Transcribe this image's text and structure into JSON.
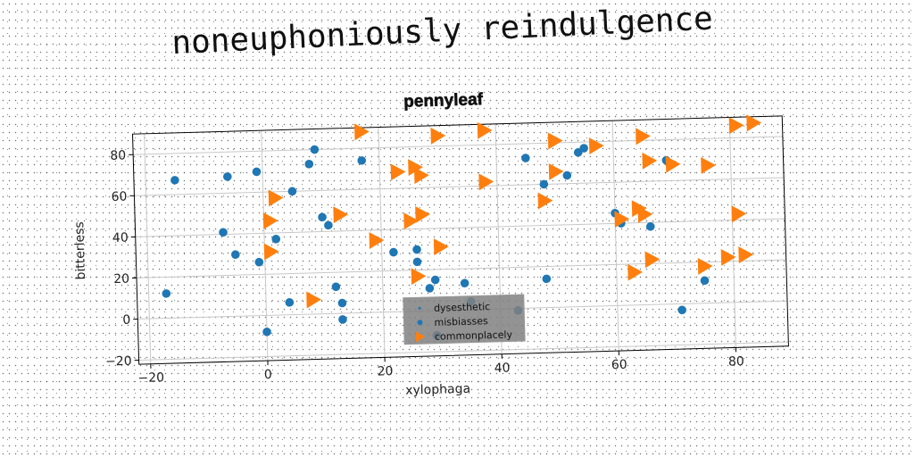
{
  "heading": "noneuphoniously reindulgence",
  "chart_data": {
    "type": "scatter",
    "title": "pennyleaf",
    "xlabel": "xylophaga",
    "ylabel": "bitterless",
    "xlim": [
      -22,
      89
    ],
    "ylim": [
      -22,
      90
    ],
    "xticks": [
      -20,
      0,
      20,
      40,
      60,
      80
    ],
    "xtick_labels": [
      "−20",
      "0",
      "20",
      "40",
      "60",
      "80"
    ],
    "yticks": [
      -20,
      0,
      20,
      40,
      60,
      80
    ],
    "ytick_labels": [
      "−20",
      "0",
      "20",
      "40",
      "60",
      "80"
    ],
    "grid": true,
    "legend_position": "lower-center",
    "series": [
      {
        "name": "dysesthetic",
        "marker": "point",
        "color": "#1f77b4",
        "x": [],
        "y": []
      },
      {
        "name": "misbiasses",
        "marker": "circle",
        "color": "#1f77b4",
        "x": [
          -17,
          -15,
          -7,
          -6,
          -5,
          -1,
          -1,
          0,
          2,
          4,
          5,
          8,
          9,
          10,
          11,
          12,
          13,
          13,
          17,
          22,
          26,
          26,
          26,
          28,
          29,
          29,
          34,
          35,
          43,
          45,
          48,
          48,
          52,
          54,
          55,
          60,
          61,
          66,
          69,
          71,
          75
        ],
        "y": [
          12,
          67,
          41,
          68,
          30,
          70,
          26,
          -8,
          37,
          6,
          60,
          73,
          80,
          47,
          43,
          13,
          5,
          -3,
          74,
          29,
          30,
          24,
          17,
          11,
          15,
          -12,
          13,
          4,
          -1,
          73,
          60,
          14,
          64,
          75,
          77,
          45,
          40,
          38,
          70,
          -3,
          11
        ],
        "marker_size": 6
      },
      {
        "name": "commonplacely",
        "marker": "triangle-right",
        "color": "#ff7f0e",
        "x": [
          1,
          1,
          2,
          8,
          13,
          17,
          19,
          23,
          25,
          26,
          26,
          27,
          27,
          30,
          30,
          38,
          38,
          48,
          50,
          50,
          57,
          61,
          63,
          64,
          65,
          65,
          66,
          66,
          70,
          75,
          76,
          79,
          81,
          81,
          82,
          84
        ],
        "y": [
          46,
          31,
          57,
          7,
          48,
          88,
          35,
          68,
          44,
          70,
          17,
          66,
          47,
          85,
          31,
          87,
          62,
          52,
          66,
          81,
          78,
          42,
          16,
          47,
          44,
          82,
          70,
          22,
          68,
          18,
          67,
          22,
          86,
          43,
          23,
          87
        ],
        "marker_size": 7
      }
    ]
  }
}
